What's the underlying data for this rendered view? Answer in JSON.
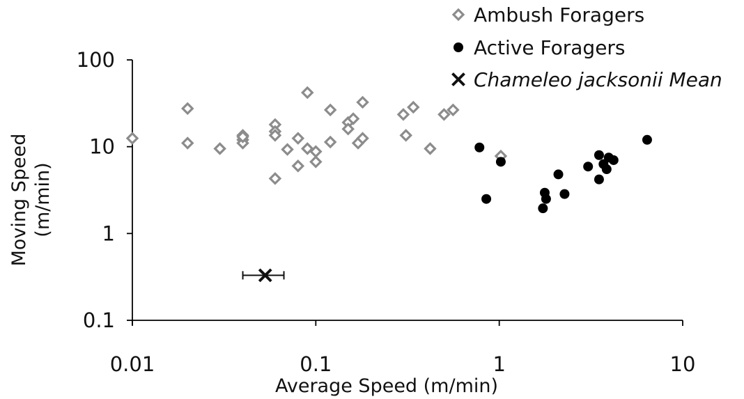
{
  "chart_data": {
    "type": "scatter",
    "title": "",
    "xlabel": "Average Speed (m/min)",
    "ylabel_lines": [
      "Moving Speed",
      "(m/min)"
    ],
    "x_scale": "log",
    "y_scale": "log",
    "xlim": [
      0.01,
      10
    ],
    "ylim": [
      0.1,
      100
    ],
    "x_ticks": [
      0.01,
      0.1,
      1,
      10
    ],
    "x_tick_labels": [
      "0.01",
      "0.1",
      "1",
      "10"
    ],
    "y_ticks": [
      0.1,
      1,
      10,
      100
    ],
    "y_tick_labels": [
      "0.1",
      "1",
      "10",
      "100"
    ],
    "grid": false,
    "legend_position": "top-right",
    "series": [
      {
        "name": "Ambush Foragers",
        "marker": "diamond-open",
        "color": "#8c8c8c",
        "points": [
          [
            0.01,
            12.5
          ],
          [
            0.02,
            27.5
          ],
          [
            0.02,
            11.0
          ],
          [
            0.03,
            9.5
          ],
          [
            0.04,
            13.5
          ],
          [
            0.04,
            12.0
          ],
          [
            0.04,
            11.0
          ],
          [
            0.04,
            13.0
          ],
          [
            0.06,
            18.0
          ],
          [
            0.06,
            15.0
          ],
          [
            0.06,
            13.5
          ],
          [
            0.06,
            4.3
          ],
          [
            0.07,
            9.3
          ],
          [
            0.08,
            12.5
          ],
          [
            0.08,
            6.0
          ],
          [
            0.09,
            42.0
          ],
          [
            0.09,
            9.5
          ],
          [
            0.1,
            8.8
          ],
          [
            0.1,
            6.7
          ],
          [
            0.12,
            26.5
          ],
          [
            0.12,
            11.3
          ],
          [
            0.15,
            19.0
          ],
          [
            0.15,
            16.0
          ],
          [
            0.16,
            21.0
          ],
          [
            0.17,
            11.0
          ],
          [
            0.18,
            32.5
          ],
          [
            0.18,
            12.5
          ],
          [
            0.3,
            23.5
          ],
          [
            0.31,
            13.5
          ],
          [
            0.34,
            28.5
          ],
          [
            0.42,
            9.5
          ],
          [
            0.5,
            23.5
          ],
          [
            0.56,
            26.5
          ],
          [
            1.02,
            7.8
          ]
        ]
      },
      {
        "name": "Active Foragers",
        "marker": "circle-filled",
        "color": "#000000",
        "points": [
          [
            0.78,
            9.8
          ],
          [
            0.85,
            2.5
          ],
          [
            1.02,
            6.7
          ],
          [
            1.73,
            1.95
          ],
          [
            1.77,
            2.95
          ],
          [
            1.8,
            2.5
          ],
          [
            2.1,
            4.8
          ],
          [
            2.27,
            2.85
          ],
          [
            3.05,
            5.9
          ],
          [
            3.5,
            4.2
          ],
          [
            3.5,
            8.0
          ],
          [
            3.7,
            6.3
          ],
          [
            3.85,
            5.5
          ],
          [
            3.95,
            7.5
          ],
          [
            4.2,
            7.0
          ],
          [
            6.4,
            12.0
          ]
        ]
      },
      {
        "name": "Chameleo jacksonii Mean",
        "marker": "x",
        "color": "#111111",
        "points": [
          [
            0.053,
            0.33
          ]
        ],
        "x_error": [
          [
            0.04,
            0.067
          ]
        ]
      }
    ]
  }
}
